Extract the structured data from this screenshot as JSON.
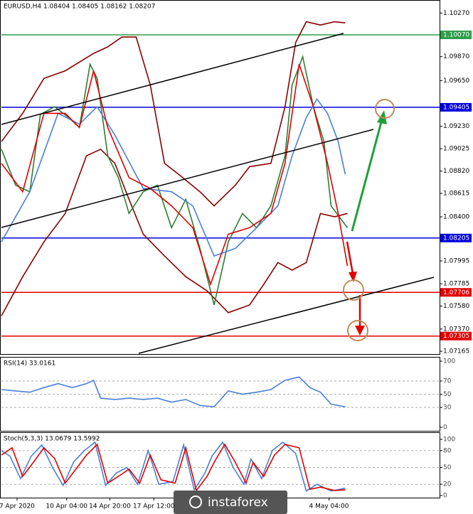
{
  "chart_data": [
    {
      "type": "line",
      "title": "EURUSD,H4 1.08404 1.08405 1.08162 1.08207",
      "xlim": [
        0,
        154.5
      ],
      "ylim": [
        1.0714,
        1.1039
      ],
      "yticks": [
        {
          "value": 1.1027,
          "label": "1.10270"
        },
        {
          "value": 1.0987,
          "label": "1.09870"
        },
        {
          "value": 1.0965,
          "label": "1.09650"
        },
        {
          "value": 1.0923,
          "label": "1.09230"
        },
        {
          "value": 1.09025,
          "label": "1.09025"
        },
        {
          "value": 1.0882,
          "label": "1.08820"
        },
        {
          "value": 1.08615,
          "label": "1.08615"
        },
        {
          "value": 1.084,
          "label": "1.08400"
        },
        {
          "value": 1.07995,
          "label": "1.07995"
        },
        {
          "value": 1.07785,
          "label": "1.07785"
        },
        {
          "value": 1.0758,
          "label": "1.07580"
        },
        {
          "value": 1.0737,
          "label": "1.07370"
        },
        {
          "value": 1.07165,
          "label": "1.07165"
        }
      ],
      "levels": [
        {
          "value": 1.1007,
          "label": "1.10070",
          "color": "#2e9e4a"
        },
        {
          "value": 1.09405,
          "label": "1.09405",
          "color": "#0000dd"
        },
        {
          "value": 1.08205,
          "label": "1.08205",
          "color": "#0000dd"
        },
        {
          "value": 1.07706,
          "label": "1.07706",
          "color": "#e00000"
        },
        {
          "value": 1.07305,
          "label": "1.07305",
          "color": "#e00000"
        }
      ],
      "series": [
        {
          "color": "#8b0000",
          "x": [
            0,
            7.5,
            15,
            22.5,
            32.5,
            37.5,
            42.5,
            47.5,
            52.5,
            57.5,
            62.5,
            70,
            75,
            82.5,
            87.5,
            95,
            100,
            103.75,
            107.5,
            112.5,
            117.5,
            121.25
          ],
          "values": [
            1.0909,
            1.0935,
            1.0967,
            1.0974,
            1.099,
            1.0996,
            1.1005,
            1.1005,
            1.0961,
            1.0889,
            1.0879,
            1.0863,
            1.085,
            1.0869,
            1.0886,
            1.0889,
            1.0941,
            1.1,
            1.1019,
            1.1016,
            1.1019,
            1.1018
          ]
        },
        {
          "color": "#8b0000",
          "x": [
            0,
            7.5,
            15,
            22.5,
            30,
            35,
            40,
            45,
            50,
            57.5,
            65,
            72.5,
            80,
            87.5,
            92.5,
            97.5,
            102.5,
            107.5,
            112.5,
            117.5,
            122
          ],
          "values": [
            1.0749,
            1.0785,
            1.0817,
            1.0843,
            1.0896,
            1.0902,
            1.0889,
            1.0856,
            1.0824,
            1.0804,
            1.0785,
            1.0772,
            1.0752,
            1.0759,
            1.0778,
            1.0798,
            1.0791,
            1.0798,
            1.0843,
            1.084,
            1.0843
          ]
        },
        {
          "color": "#2e7d32",
          "x": [
            0,
            5,
            10,
            13.75,
            18.75,
            23.75,
            27.5,
            31.25,
            33.75,
            37.5,
            41.25,
            45,
            50,
            55,
            60,
            65,
            70,
            75,
            80,
            85,
            90,
            95,
            100,
            102.5,
            106.25,
            110,
            113.75,
            116.25,
            120,
            122
          ],
          "values": [
            1.0902,
            1.0869,
            1.0863,
            1.0934,
            1.0941,
            1.0931,
            1.0922,
            1.098,
            1.0967,
            1.0896,
            1.0876,
            1.0843,
            1.0863,
            1.0869,
            1.083,
            1.0856,
            1.0811,
            1.0759,
            1.0817,
            1.0843,
            1.083,
            1.085,
            1.0896,
            1.0961,
            1.0987,
            1.0941,
            1.0909,
            1.085,
            1.0837,
            1.083
          ]
        },
        {
          "color": "#4a7fd6",
          "x": [
            0,
            10,
            20,
            27.5,
            33.75,
            40,
            50,
            60,
            67.5,
            75,
            82.5,
            90,
            97.5,
            102.5,
            107.5,
            111.25,
            115,
            118.75,
            121.25
          ],
          "values": [
            1.0817,
            1.0863,
            1.0935,
            1.0925,
            1.0941,
            1.0915,
            1.0866,
            1.0863,
            1.085,
            1.0804,
            1.0811,
            1.083,
            1.085,
            1.0896,
            1.0931,
            1.0948,
            1.0935,
            1.0909,
            1.0879
          ]
        },
        {
          "color": "#e00000",
          "x": [
            0,
            7.5,
            15,
            22.5,
            27.5,
            32.5,
            37.5,
            45,
            52.5,
            60,
            67.5,
            73.75,
            80,
            87.5,
            95,
            100,
            105,
            110,
            115,
            118.75,
            122
          ],
          "values": [
            1.0889,
            1.0863,
            1.0935,
            1.0935,
            1.0922,
            1.0974,
            1.0922,
            1.0876,
            1.0866,
            1.085,
            1.083,
            1.0778,
            1.0824,
            1.083,
            1.0843,
            1.0889,
            1.098,
            1.0941,
            1.0889,
            1.0843,
            1.0795
          ]
        }
      ]
    },
    {
      "type": "line",
      "title": "RSI(14) 33.0161",
      "xlim": [
        0,
        154.5
      ],
      "ylim": [
        -5.4,
        106.5
      ],
      "yticks": [
        100,
        70,
        50,
        30,
        0
      ],
      "levels": [
        70,
        50,
        30
      ],
      "series": [
        {
          "color": "#4a7fd6",
          "x": [
            0,
            5,
            10,
            15,
            20,
            25,
            30,
            32.5,
            35,
            40,
            45,
            50,
            55,
            60,
            65,
            70,
            75,
            80,
            85,
            90,
            95,
            100,
            105,
            108.75,
            112.5,
            116.25,
            121.25
          ],
          "values": [
            57,
            55,
            53,
            60,
            66,
            60,
            66,
            71,
            44,
            42,
            44,
            42,
            44,
            38,
            42,
            33,
            31,
            55,
            50,
            53,
            57,
            71,
            76,
            60,
            53,
            35,
            31
          ]
        }
      ]
    },
    {
      "type": "line",
      "title": "Stoch(5,3,3) 13.0679 13.5992",
      "xlim": [
        0,
        154.5
      ],
      "ylim": [
        -3.8,
        112.7
      ],
      "yticks": [
        100,
        80,
        50,
        20,
        0
      ],
      "levels": [
        80,
        50,
        20
      ],
      "xticks": [
        {
          "value": 5.5,
          "label": "7 Apr 2020"
        },
        {
          "value": 23,
          "label": "10 Apr 04:00"
        },
        {
          "value": 38.25,
          "label": "14 Apr 20:00"
        },
        {
          "value": 53.75,
          "label": "17 Apr 12:00"
        },
        {
          "value": 115.5,
          "label": "4 May 04:00"
        }
      ],
      "series": [
        {
          "color": "#4a7fd6",
          "x": [
            0,
            3,
            6.75,
            10.5,
            14.25,
            18,
            21.75,
            25.5,
            29.25,
            33,
            36.75,
            40.5,
            44.25,
            48,
            51.75,
            55.5,
            60.5,
            64.25,
            68,
            71.75,
            74.25,
            78,
            81.75,
            85.5,
            88,
            91.75,
            95.5,
            99.25,
            103.75,
            107.5,
            111.25,
            116.25,
            121.25
          ],
          "values": [
            80,
            70,
            30,
            70,
            90,
            50,
            18,
            60,
            80,
            95,
            18,
            40,
            50,
            20,
            80,
            20,
            25,
            90,
            10,
            40,
            70,
            95,
            50,
            20,
            65,
            30,
            80,
            95,
            75,
            8,
            20,
            8,
            13
          ]
        },
        {
          "color": "#e00000",
          "x": [
            0,
            3.75,
            7.5,
            11.25,
            15,
            18.75,
            22.5,
            26.25,
            30,
            33.75,
            37.5,
            41.25,
            45,
            48.75,
            52.5,
            56.25,
            61.25,
            65,
            68.75,
            72.5,
            75,
            78.75,
            82.5,
            86.25,
            88.75,
            92.5,
            96.25,
            100,
            105,
            108.75,
            112.5,
            117.5,
            121.25
          ],
          "values": [
            72,
            85,
            34,
            59,
            85,
            66,
            22,
            47,
            72,
            91,
            22,
            34,
            47,
            22,
            72,
            28,
            22,
            85,
            9,
            34,
            59,
            91,
            59,
            22,
            59,
            34,
            72,
            91,
            85,
            11,
            15,
            9,
            10
          ]
        }
      ]
    }
  ],
  "watermark": "instaforex"
}
